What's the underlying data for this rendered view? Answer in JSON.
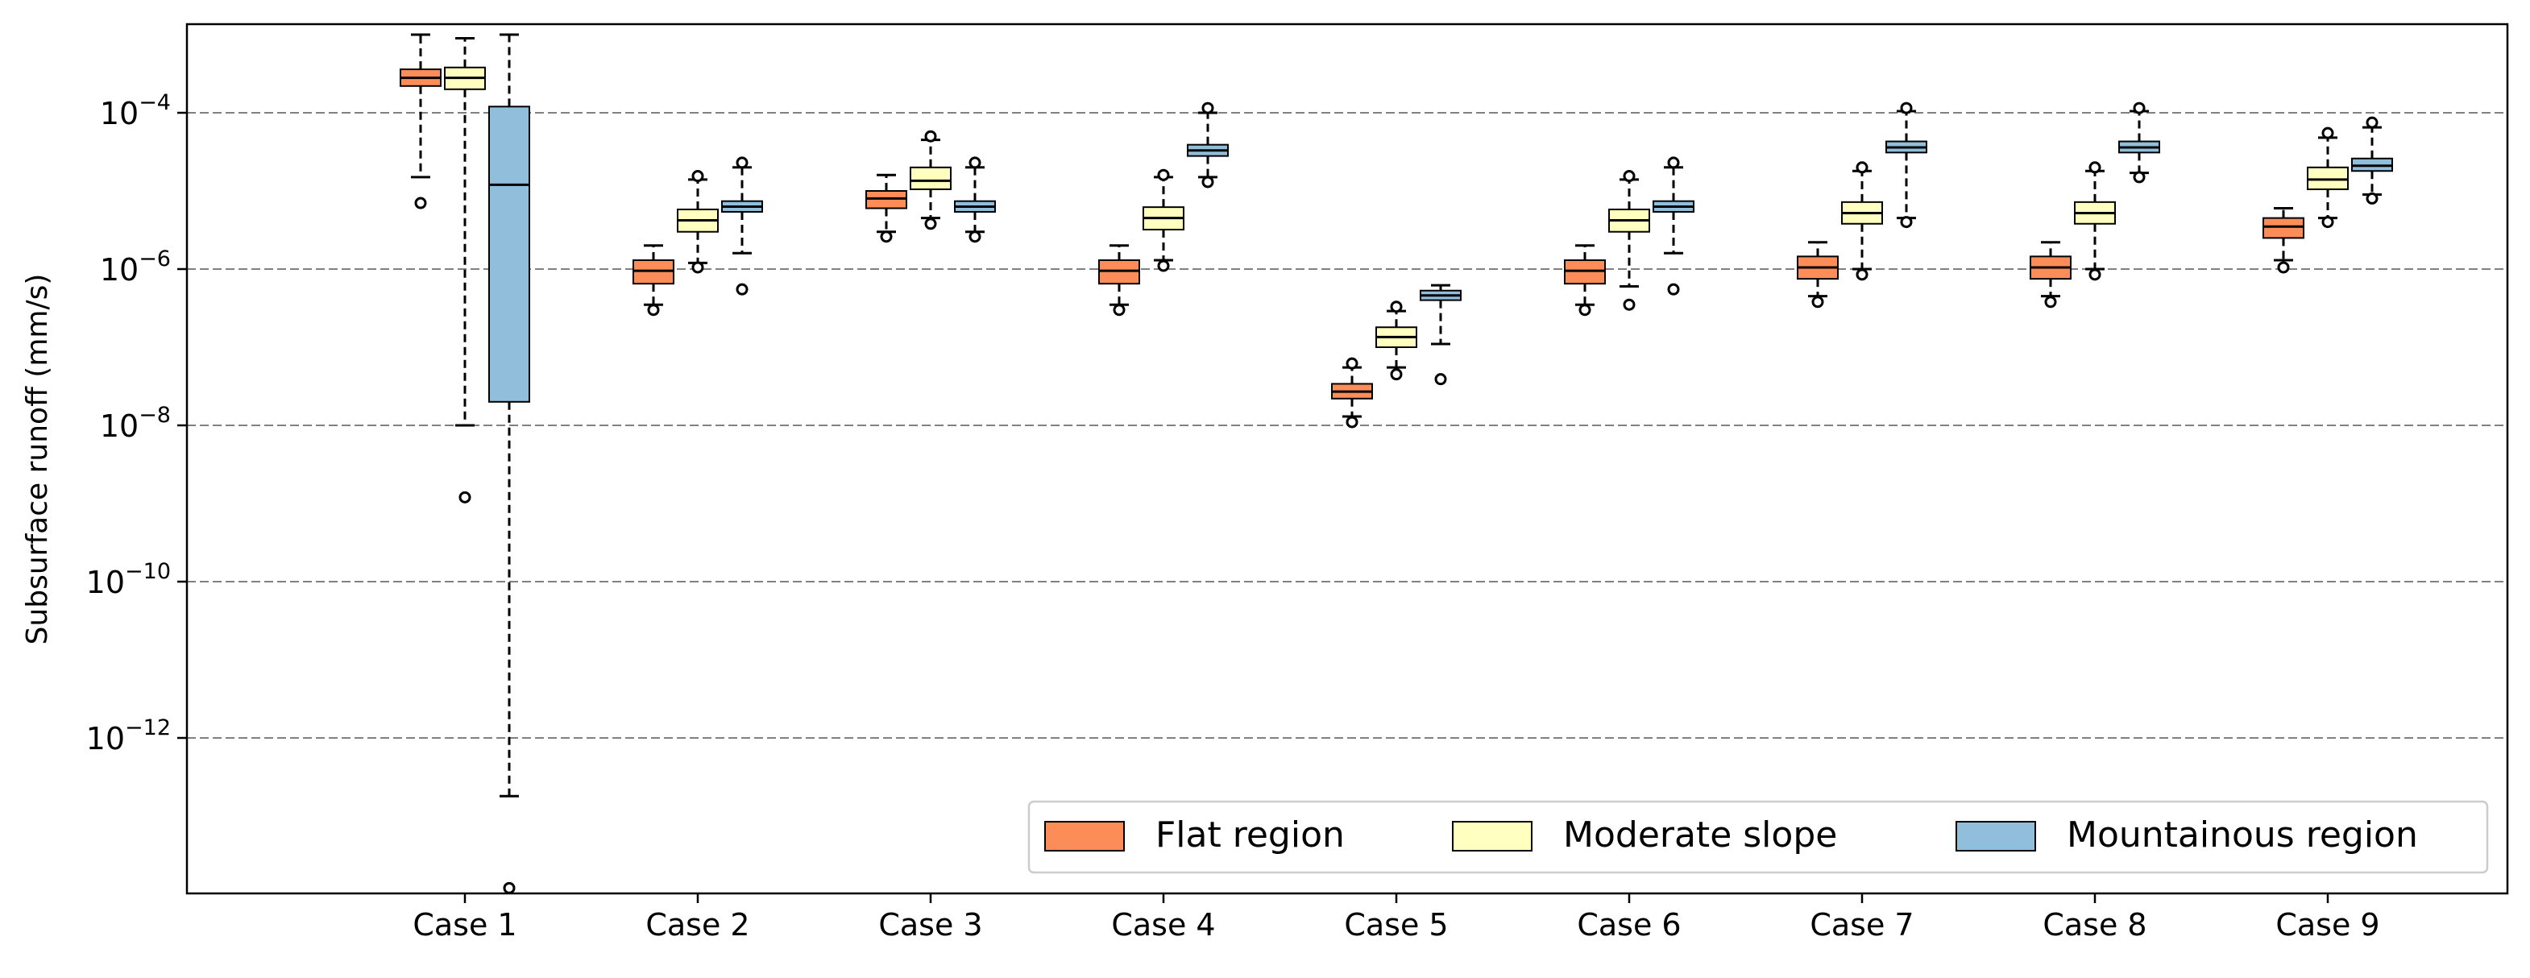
{
  "chart_data": {
    "type": "box",
    "title": "",
    "xlabel": "",
    "ylabel": "Subsurface runoff (mm/s)",
    "yscale": "log",
    "ylim": [
      1e-14,
      0.002
    ],
    "y_ticks": [
      {
        "value": 0.0001,
        "base": "10",
        "exp": "−4"
      },
      {
        "value": 1e-06,
        "base": "10",
        "exp": "−6"
      },
      {
        "value": 1e-08,
        "base": "10",
        "exp": "−8"
      },
      {
        "value": 1e-10,
        "base": "10",
        "exp": "−10"
      },
      {
        "value": 1e-12,
        "base": "10",
        "exp": "−12"
      }
    ],
    "grid": "horizontal dashed",
    "legend_position": "bottom-right",
    "categories": [
      "Case 1",
      "Case 2",
      "Case 3",
      "Case 4",
      "Case 5",
      "Case 6",
      "Case 7",
      "Case 8",
      "Case 9"
    ],
    "series": [
      {
        "name": "Flat region",
        "color": "#fc8d59",
        "boxes": [
          {
            "whislo": 1.5e-05,
            "q1": 0.00022,
            "med": 0.00028,
            "q3": 0.00036,
            "whishi": 0.001,
            "fliers": [
              7e-06
            ]
          },
          {
            "whislo": 3.5e-07,
            "q1": 6.5e-07,
            "med": 9.5e-07,
            "q3": 1.3e-06,
            "whishi": 2e-06,
            "fliers": [
              3e-07
            ]
          },
          {
            "whislo": 3e-06,
            "q1": 6e-06,
            "med": 8e-06,
            "q3": 1e-05,
            "whishi": 1.6e-05,
            "fliers": [
              2.6e-06
            ]
          },
          {
            "whislo": 3.5e-07,
            "q1": 6.5e-07,
            "med": 9.5e-07,
            "q3": 1.3e-06,
            "whishi": 2e-06,
            "fliers": [
              3e-07
            ]
          },
          {
            "whislo": 1.3e-08,
            "q1": 2.2e-08,
            "med": 2.7e-08,
            "q3": 3.4e-08,
            "whishi": 5.5e-08,
            "fliers": [
              1.1e-08,
              6.2e-08
            ]
          },
          {
            "whislo": 3.5e-07,
            "q1": 6.5e-07,
            "med": 9.5e-07,
            "q3": 1.3e-06,
            "whishi": 2e-06,
            "fliers": [
              3e-07
            ]
          },
          {
            "whislo": 4.5e-07,
            "q1": 7.5e-07,
            "med": 1.05e-06,
            "q3": 1.45e-06,
            "whishi": 2.2e-06,
            "fliers": [
              3.8e-07
            ]
          },
          {
            "whislo": 4.5e-07,
            "q1": 7.5e-07,
            "med": 1.05e-06,
            "q3": 1.45e-06,
            "whishi": 2.2e-06,
            "fliers": [
              3.8e-07
            ]
          },
          {
            "whislo": 1.3e-06,
            "q1": 2.5e-06,
            "med": 3.5e-06,
            "q3": 4.5e-06,
            "whishi": 6e-06,
            "fliers": [
              1.05e-06
            ]
          }
        ]
      },
      {
        "name": "Moderate slope",
        "color": "#ffffbf",
        "boxes": [
          {
            "whislo": 1e-08,
            "q1": 0.0002,
            "med": 0.00028,
            "q3": 0.00038,
            "whishi": 0.0009,
            "fliers": [
              1.2e-09
            ]
          },
          {
            "whislo": 1.2e-06,
            "q1": 3e-06,
            "med": 4.2e-06,
            "q3": 5.8e-06,
            "whishi": 1.4e-05,
            "fliers": [
              1.05e-06,
              1.55e-05
            ]
          },
          {
            "whislo": 4.5e-06,
            "q1": 1.05e-05,
            "med": 1.35e-05,
            "q3": 2e-05,
            "whishi": 4.5e-05,
            "fliers": [
              3.8e-06,
              5e-05
            ]
          },
          {
            "whislo": 1.3e-06,
            "q1": 3.2e-06,
            "med": 4.5e-06,
            "q3": 6.2e-06,
            "whishi": 1.5e-05,
            "fliers": [
              1.1e-06,
              1.6e-05
            ]
          },
          {
            "whislo": 5.5e-08,
            "q1": 1e-07,
            "med": 1.35e-07,
            "q3": 1.8e-07,
            "whishi": 2.9e-07,
            "fliers": [
              4.5e-08,
              3.3e-07
            ]
          },
          {
            "whislo": 6e-07,
            "q1": 3e-06,
            "med": 4.2e-06,
            "q3": 5.8e-06,
            "whishi": 1.4e-05,
            "fliers": [
              3.5e-07,
              1.55e-05
            ]
          },
          {
            "whislo": 1e-06,
            "q1": 3.8e-06,
            "med": 5.2e-06,
            "q3": 7.2e-06,
            "whishi": 1.8e-05,
            "fliers": [
              8.5e-07,
              2e-05
            ]
          },
          {
            "whislo": 1e-06,
            "q1": 3.8e-06,
            "med": 5.2e-06,
            "q3": 7.2e-06,
            "whishi": 1.8e-05,
            "fliers": [
              8.5e-07,
              2e-05
            ]
          },
          {
            "whislo": 4.5e-06,
            "q1": 1.05e-05,
            "med": 1.4e-05,
            "q3": 2e-05,
            "whishi": 4.8e-05,
            "fliers": [
              4e-06,
              5.5e-05
            ]
          }
        ]
      },
      {
        "name": "Mountainous region",
        "color": "#91bfdb",
        "boxes": [
          {
            "whislo": 1.8e-13,
            "q1": 2e-08,
            "med": 1.2e-05,
            "q3": 0.00012,
            "whishi": 0.001,
            "fliers": [
              1.2e-14
            ]
          },
          {
            "whislo": 1.6e-06,
            "q1": 5.4e-06,
            "med": 6.3e-06,
            "q3": 7.4e-06,
            "whishi": 2e-05,
            "fliers": [
              5.5e-07,
              2.3e-05
            ]
          },
          {
            "whislo": 3e-06,
            "q1": 5.4e-06,
            "med": 6.3e-06,
            "q3": 7.4e-06,
            "whishi": 2e-05,
            "fliers": [
              2.6e-06,
              2.3e-05
            ]
          },
          {
            "whislo": 1.5e-05,
            "q1": 2.8e-05,
            "med": 3.3e-05,
            "q3": 3.9e-05,
            "whishi": 0.0001,
            "fliers": [
              1.3e-05,
              0.000115
            ]
          },
          {
            "whislo": 1.1e-07,
            "q1": 4e-07,
            "med": 4.6e-07,
            "q3": 5.3e-07,
            "whishi": 6.2e-07,
            "fliers": [
              3.9e-08
            ]
          },
          {
            "whislo": 1.6e-06,
            "q1": 5.4e-06,
            "med": 6.3e-06,
            "q3": 7.4e-06,
            "whishi": 2e-05,
            "fliers": [
              5.5e-07,
              2.3e-05
            ]
          },
          {
            "whislo": 4.5e-06,
            "q1": 3.1e-05,
            "med": 3.6e-05,
            "q3": 4.3e-05,
            "whishi": 0.000105,
            "fliers": [
              4e-06,
              0.000115
            ]
          },
          {
            "whislo": 1.7e-05,
            "q1": 3.1e-05,
            "med": 3.6e-05,
            "q3": 4.3e-05,
            "whishi": 0.000105,
            "fliers": [
              1.5e-05,
              0.000115
            ]
          },
          {
            "whislo": 9e-06,
            "q1": 1.8e-05,
            "med": 2.1e-05,
            "q3": 2.6e-05,
            "whishi": 6.5e-05,
            "fliers": [
              8e-06,
              7.5e-05
            ]
          }
        ]
      }
    ]
  }
}
